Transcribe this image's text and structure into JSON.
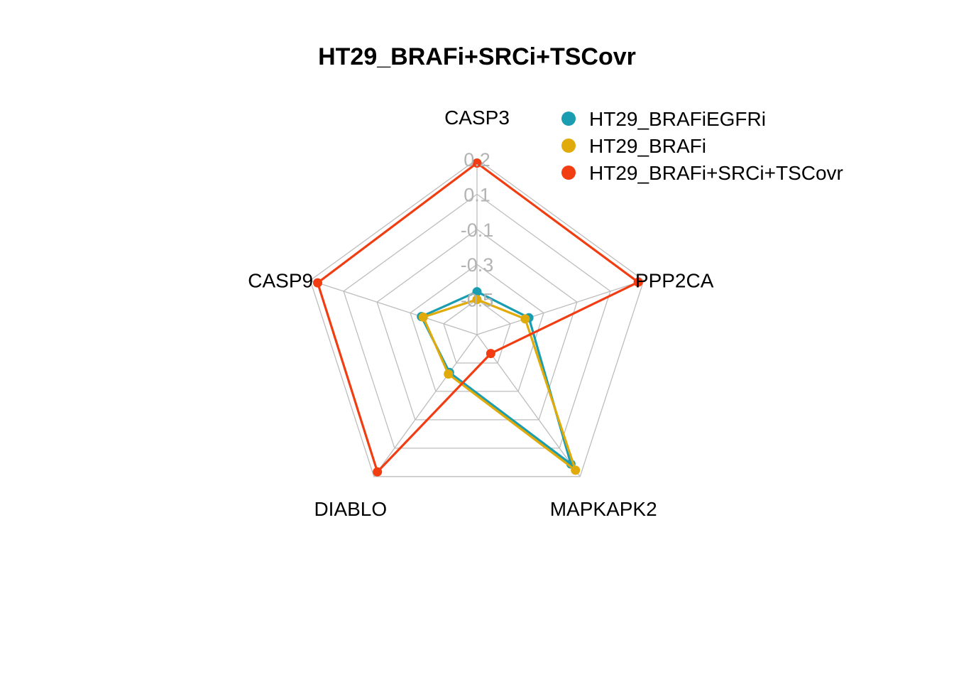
{
  "chart_data": {
    "type": "radar",
    "title": "HT29_BRAFi+SRCi+TSCovr",
    "axes": [
      "CASP3",
      "PPP2CA",
      "MAPKAPK2",
      "DIABLO",
      "CASP9"
    ],
    "ticks": [
      0.2,
      0.1,
      -0.1,
      -0.3,
      -0.5
    ],
    "tick_labels": [
      "0.2",
      "0.1",
      "-0.1",
      "-0.3",
      "-0.5"
    ],
    "range": [
      -0.7,
      0.2
    ],
    "grid": true,
    "legend_position": "top-right",
    "series": [
      {
        "name": "HT29_BRAFiEGFRi",
        "color": "#1a9db1",
        "values": [
          -0.48,
          -0.42,
          0.12,
          -0.46,
          -0.4
        ]
      },
      {
        "name": "HT29_BRAFi",
        "color": "#e0ab0a",
        "values": [
          -0.52,
          -0.44,
          0.16,
          -0.45,
          -0.41
        ]
      },
      {
        "name": "HT29_BRAFi+SRCi+TSCovr",
        "color": "#f23c12",
        "values": [
          0.18,
          0.17,
          -0.58,
          0.17,
          0.16
        ]
      }
    ]
  }
}
